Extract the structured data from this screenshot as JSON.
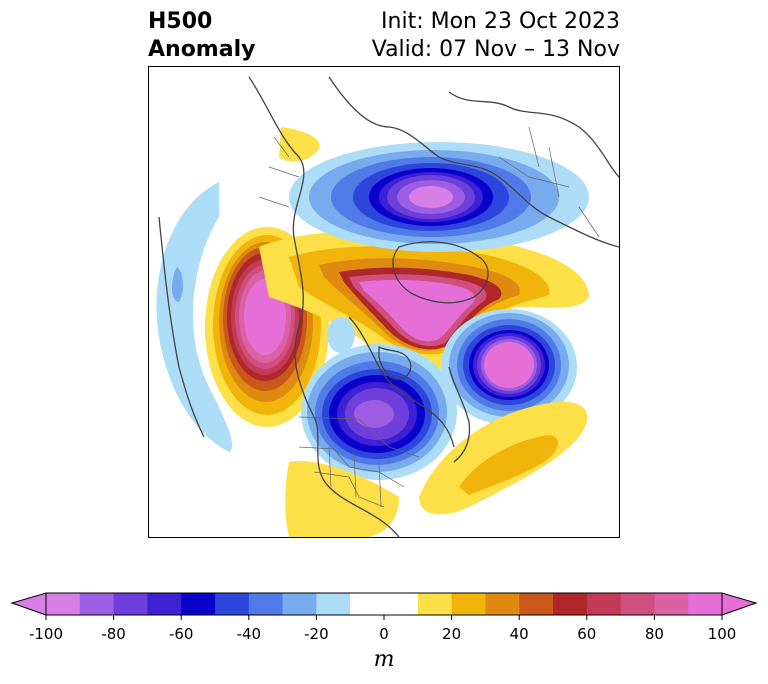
{
  "title": {
    "left_line1": "H500",
    "left_line2": "Anomaly",
    "right_line1": "Init: Mon 23 Oct 2023",
    "right_line2": "Valid: 07 Nov – 13 Nov"
  },
  "colorbar": {
    "units": "m",
    "tick_labels": [
      "-100",
      "-80",
      "-60",
      "-40",
      "-20",
      "0",
      "20",
      "40",
      "60",
      "80",
      "100"
    ],
    "levels": [
      -100,
      -90,
      -80,
      -70,
      -60,
      -50,
      -40,
      -30,
      -20,
      -10,
      10,
      20,
      30,
      40,
      50,
      60,
      70,
      80,
      90,
      100
    ],
    "colors": [
      "#d77fe6",
      "#9d5ee3",
      "#6f3fdc",
      "#3e20d5",
      "#0a00cc",
      "#2c46dc",
      "#4f7ae8",
      "#78aaee",
      "#addcf7",
      "#ffffff",
      "#fde047",
      "#f1b40a",
      "#de8a10",
      "#c9581a",
      "#b0272a",
      "#c23a58",
      "#cf4f7f",
      "#da61a6",
      "#e66fd7"
    ],
    "extend_min_color": "#d77fe6",
    "extend_max_color": "#e66fd7"
  },
  "map": {
    "projection": "north-polar-stereographic",
    "features": [
      "anomaly-contours",
      "coastlines",
      "country-borders",
      "state-borders"
    ]
  }
}
